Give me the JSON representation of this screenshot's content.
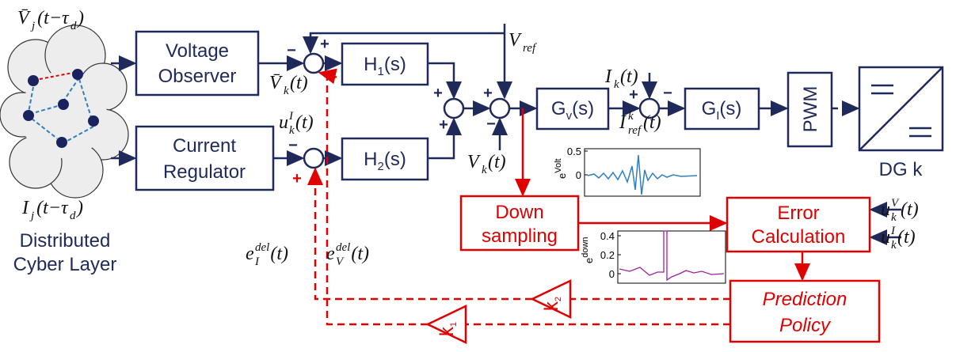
{
  "cyber_layer": {
    "title": [
      "Distributed",
      "Cyber Layer"
    ]
  },
  "blocks": {
    "voltage_observer": [
      "Voltage",
      "Observer"
    ],
    "current_regulator": [
      "Current",
      "Regulator"
    ],
    "h1": {
      "base": "H",
      "sub": "1",
      "arg": "(s)"
    },
    "h2": {
      "base": "H",
      "sub": "2",
      "arg": "(s)"
    },
    "gv": {
      "base": "G",
      "sub": "v",
      "arg": "(s)"
    },
    "gi": {
      "base": "G",
      "sub": "I",
      "arg": "(s)"
    },
    "pwm": "PWM",
    "dg": "DG k",
    "down_sampling": [
      "Down",
      "sampling"
    ],
    "error_calculation": [
      "Error",
      "Calculation"
    ],
    "prediction_policy": [
      "Prediction",
      "Policy"
    ],
    "k1": {
      "base": "k",
      "sub": "1"
    },
    "k2": {
      "base": "k",
      "sub": "2"
    }
  },
  "labels": [
    {
      "parts": [
        {
          "text": "V̄",
          "pos": "base"
        },
        {
          "text": "j",
          "pos": "sub"
        },
        {
          "text": "(t−τ",
          "pos": "base"
        },
        {
          "text": "d",
          "pos": "sub"
        },
        {
          "text": ")",
          "pos": "base"
        }
      ]
    },
    {
      "parts": [
        {
          "text": "I",
          "pos": "base"
        },
        {
          "text": "j",
          "pos": "sub"
        },
        {
          "text": "(t−τ",
          "pos": "base"
        },
        {
          "text": "d",
          "pos": "sub"
        },
        {
          "text": ")",
          "pos": "base"
        }
      ]
    },
    {
      "parts": [
        {
          "text": "V̄",
          "pos": "base"
        },
        {
          "text": "k",
          "pos": "sub"
        },
        {
          "text": "(t)",
          "pos": "base"
        }
      ]
    },
    {
      "parts": [
        {
          "text": "u",
          "pos": "base"
        },
        {
          "text": "I",
          "pos": "sup"
        },
        {
          "text": "k",
          "pos": "sub"
        },
        {
          "text": "(t)",
          "pos": "base"
        }
      ]
    },
    {
      "parts": [
        {
          "text": "V",
          "pos": "base"
        },
        {
          "text": "ref",
          "pos": "sub"
        }
      ]
    },
    {
      "parts": [
        {
          "text": "I",
          "pos": "base"
        },
        {
          "text": "k",
          "pos": "sub"
        },
        {
          "text": "(t)",
          "pos": "base"
        }
      ]
    },
    {
      "parts": [
        {
          "text": "I",
          "pos": "base"
        },
        {
          "text": "k",
          "pos": "sup"
        },
        {
          "text": "ref",
          "pos": "sub"
        },
        {
          "text": "(t)",
          "pos": "base"
        }
      ]
    },
    {
      "parts": [
        {
          "text": "V",
          "pos": "base"
        },
        {
          "text": "k",
          "pos": "sub"
        },
        {
          "text": "(t)",
          "pos": "base"
        }
      ]
    },
    {
      "parts": [
        {
          "text": "e",
          "pos": "base"
        },
        {
          "text": "del",
          "pos": "sup"
        },
        {
          "text": "I",
          "pos": "sub"
        },
        {
          "text": "(t)",
          "pos": "base"
        }
      ]
    },
    {
      "parts": [
        {
          "text": "e",
          "pos": "base"
        },
        {
          "text": "del",
          "pos": "sup"
        },
        {
          "text": "V",
          "pos": "sub"
        },
        {
          "text": "(t)",
          "pos": "base"
        }
      ]
    },
    {
      "parts": [
        {
          "text": "u",
          "pos": "base"
        },
        {
          "text": "V",
          "pos": "sup"
        },
        {
          "text": "k",
          "pos": "sub"
        },
        {
          "text": "(t)",
          "pos": "base"
        }
      ]
    },
    {
      "parts": [
        {
          "text": "u",
          "pos": "base"
        },
        {
          "text": "I",
          "pos": "sup"
        },
        {
          "text": "k",
          "pos": "sub"
        },
        {
          "text": "(t)",
          "pos": "base"
        }
      ]
    }
  ],
  "signs": [
    {
      "text": "−",
      "color": "#1f2a5a"
    },
    {
      "text": "+",
      "color": "#1f2a5a"
    },
    {
      "text": "+",
      "color": "#e00000"
    },
    {
      "text": "−",
      "color": "#1f2a5a"
    },
    {
      "text": "+",
      "color": "#e00000"
    },
    {
      "text": "+",
      "color": "#1f2a5a"
    },
    {
      "text": "+",
      "color": "#1f2a5a"
    },
    {
      "text": "+",
      "color": "#1f2a5a"
    },
    {
      "text": "−",
      "color": "#1f2a5a"
    },
    {
      "text": "+",
      "color": "#1f2a5a"
    },
    {
      "text": "−",
      "color": "#1f2a5a"
    }
  ],
  "plots": [
    {
      "ylabel": "e",
      "ylabel_sup": "Volt",
      "ylim": [
        -0.45,
        0.55
      ],
      "yticks": [
        0.5,
        0
      ]
    },
    {
      "ylabel": "e",
      "ylabel_sup": "down",
      "ylim": [
        -0.1,
        0.45
      ],
      "yticks": [
        0.4,
        0.2,
        0
      ]
    }
  ]
}
